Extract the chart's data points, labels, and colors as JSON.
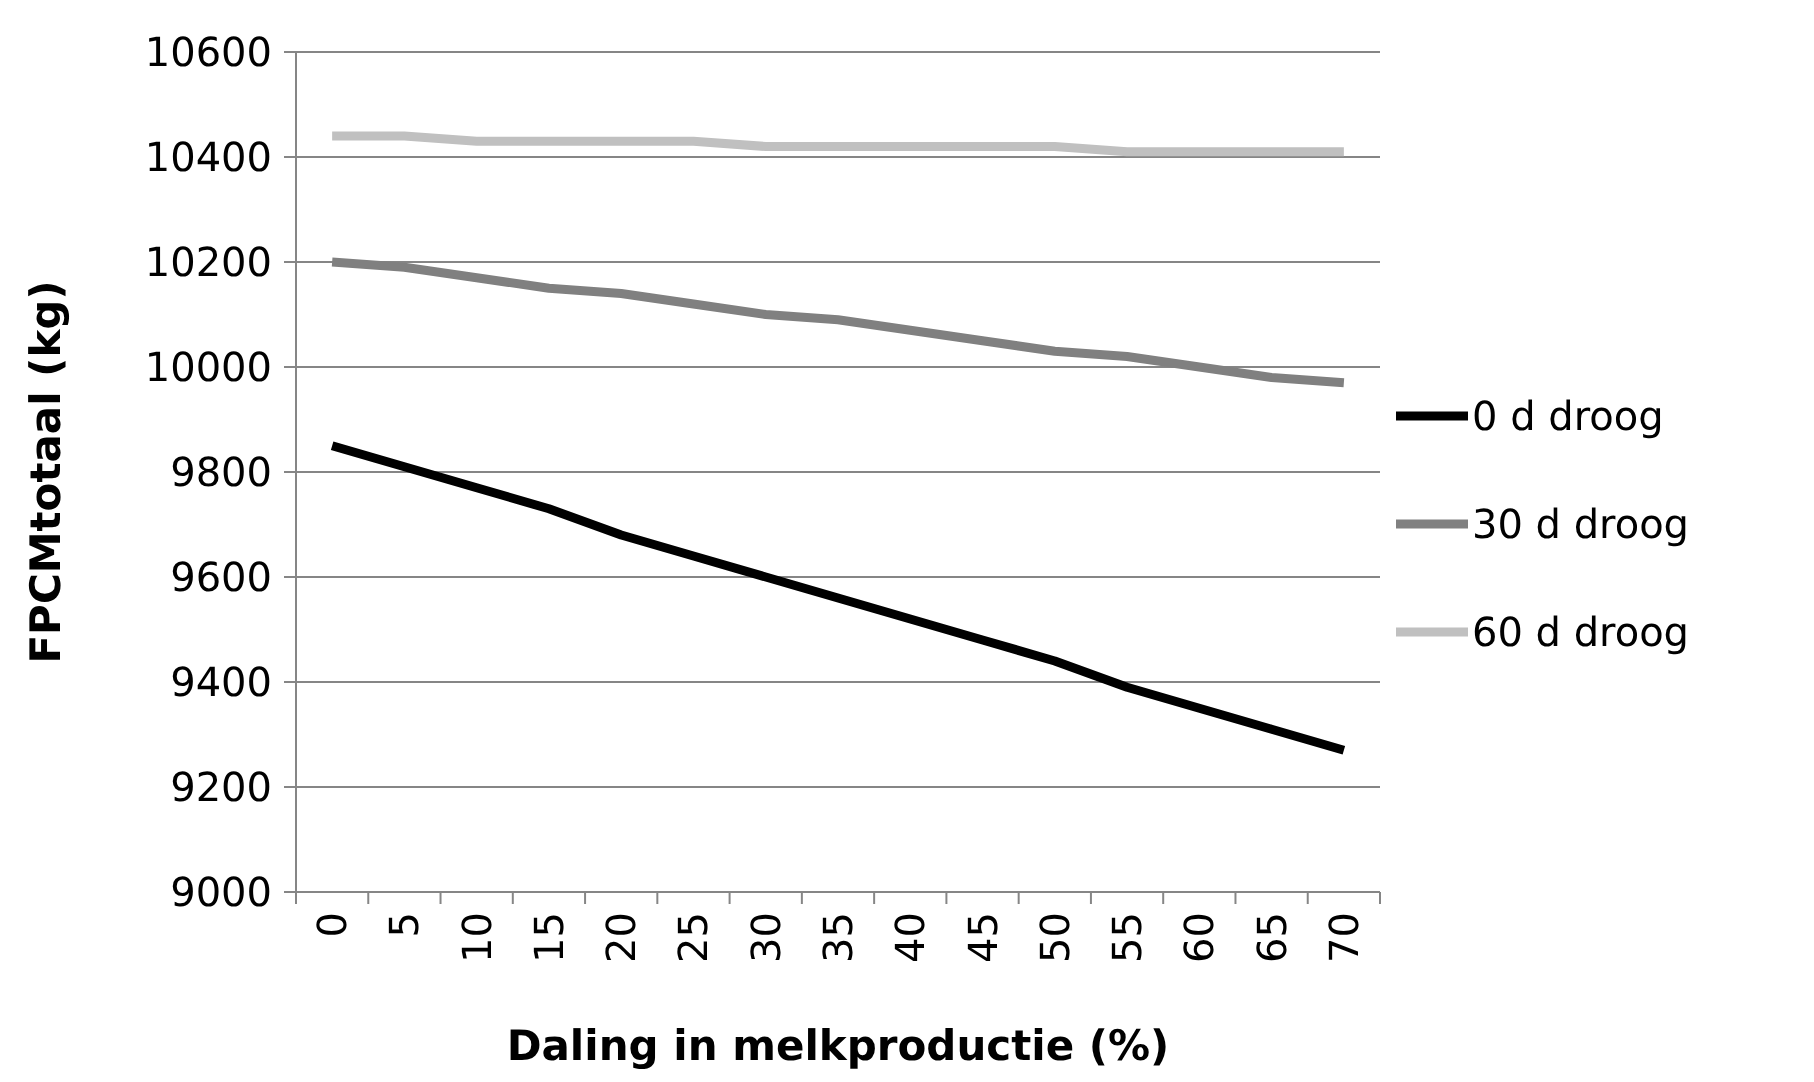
{
  "chart_data": {
    "type": "line",
    "xlabel": "Daling in melkproductie (%)",
    "ylabel": "FPCMtotaal (kg)",
    "categories": [
      "0",
      "5",
      "10",
      "15",
      "20",
      "25",
      "30",
      "35",
      "40",
      "45",
      "50",
      "55",
      "60",
      "65",
      "70"
    ],
    "series": [
      {
        "name": "0 d droog",
        "color": "#000000",
        "values": [
          9850,
          9810,
          9770,
          9730,
          9680,
          9640,
          9600,
          9560,
          9520,
          9480,
          9440,
          9390,
          9350,
          9310,
          9270
        ]
      },
      {
        "name": "30 d droog",
        "color": "#808080",
        "values": [
          10200,
          10190,
          10170,
          10150,
          10140,
          10120,
          10100,
          10090,
          10070,
          10050,
          10030,
          10020,
          10000,
          9980,
          9970
        ]
      },
      {
        "name": "60 d droog",
        "color": "#c0c0c0",
        "values": [
          10440,
          10440,
          10430,
          10430,
          10430,
          10430,
          10420,
          10420,
          10420,
          10420,
          10420,
          10410,
          10410,
          10410,
          10410
        ]
      }
    ],
    "ylim": [
      9000,
      10600
    ],
    "yticks": [
      9000,
      9200,
      9400,
      9600,
      9800,
      10000,
      10200,
      10400,
      10600
    ],
    "grid": "y",
    "legend": "right",
    "marker": "none",
    "line_style": "solid"
  }
}
